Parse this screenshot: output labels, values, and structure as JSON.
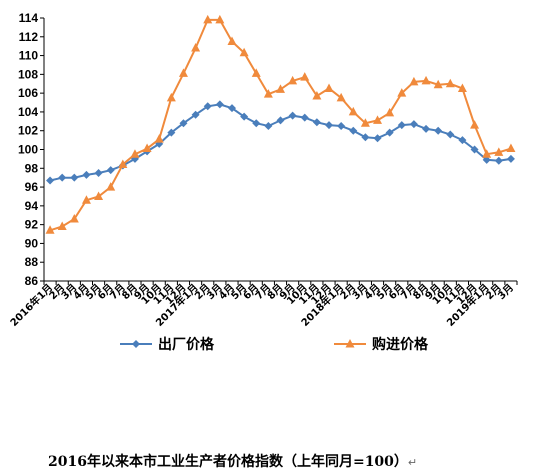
{
  "chart_data": {
    "type": "line",
    "title": "2016年以来本市工业生产者价格指数（上年同月=100）",
    "ylim": [
      86,
      114
    ],
    "yticks": [
      86,
      88,
      90,
      92,
      94,
      96,
      98,
      100,
      102,
      104,
      106,
      108,
      110,
      112,
      114
    ],
    "grid": false,
    "legend_position": "bottom",
    "categories": [
      "2016年1月",
      "2月",
      "3月",
      "4月",
      "5月",
      "6月",
      "7月",
      "8月",
      "9月",
      "10月",
      "11月",
      "12月",
      "2017年1月",
      "2月",
      "3月",
      "4月",
      "5月",
      "6月",
      "7月",
      "8月",
      "9月",
      "10月",
      "11月",
      "12月",
      "2018年1月",
      "2月",
      "3月",
      "4月",
      "5月",
      "6月",
      "7月",
      "8月",
      "9月",
      "10月",
      "11月",
      "12月",
      "2019年1月",
      "2月",
      "3月"
    ],
    "series": [
      {
        "name": "出厂价格",
        "color": "#4a7ebb",
        "marker": "diamond",
        "values": [
          96.7,
          97.0,
          97.0,
          97.3,
          97.5,
          97.8,
          98.3,
          99.0,
          99.8,
          100.6,
          101.8,
          102.8,
          103.7,
          104.6,
          104.8,
          104.4,
          103.5,
          102.8,
          102.5,
          103.1,
          103.6,
          103.4,
          102.9,
          102.6,
          102.5,
          102.0,
          101.3,
          101.2,
          101.8,
          102.6,
          102.7,
          102.2,
          102.0,
          101.6,
          101.0,
          100.0,
          98.9,
          98.8,
          99.0
        ]
      },
      {
        "name": "购进价格",
        "color": "#f08a3c",
        "marker": "triangle",
        "values": [
          91.4,
          91.8,
          92.6,
          94.6,
          95.0,
          96.0,
          98.4,
          99.5,
          100.1,
          101.1,
          105.5,
          108.1,
          110.8,
          113.8,
          113.8,
          111.5,
          110.3,
          108.1,
          105.9,
          106.4,
          107.3,
          107.7,
          105.7,
          106.5,
          105.5,
          104.0,
          102.8,
          103.1,
          103.9,
          106.0,
          107.2,
          107.3,
          106.9,
          107.0,
          106.5,
          102.6,
          99.5,
          99.7,
          100.1
        ]
      }
    ]
  }
}
